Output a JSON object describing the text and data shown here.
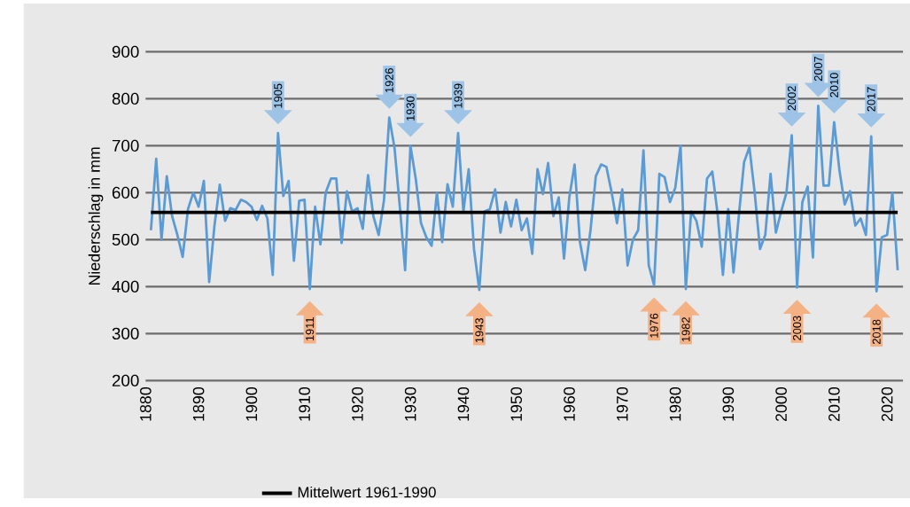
{
  "chart_data": {
    "type": "line",
    "ylabel": "Niederschlag in mm",
    "x": [
      1881,
      1882,
      1883,
      1884,
      1885,
      1886,
      1887,
      1888,
      1889,
      1890,
      1891,
      1892,
      1893,
      1894,
      1895,
      1896,
      1897,
      1898,
      1899,
      1900,
      1901,
      1902,
      1903,
      1904,
      1905,
      1906,
      1907,
      1908,
      1909,
      1910,
      1911,
      1912,
      1913,
      1914,
      1915,
      1916,
      1917,
      1918,
      1919,
      1920,
      1921,
      1922,
      1923,
      1924,
      1925,
      1926,
      1927,
      1928,
      1929,
      1930,
      1931,
      1932,
      1933,
      1934,
      1935,
      1936,
      1937,
      1938,
      1939,
      1940,
      1941,
      1942,
      1943,
      1944,
      1945,
      1946,
      1947,
      1948,
      1949,
      1950,
      1951,
      1952,
      1953,
      1954,
      1955,
      1956,
      1957,
      1958,
      1959,
      1960,
      1961,
      1962,
      1963,
      1964,
      1965,
      1966,
      1967,
      1968,
      1969,
      1970,
      1971,
      1972,
      1973,
      1974,
      1975,
      1976,
      1977,
      1978,
      1979,
      1980,
      1981,
      1982,
      1983,
      1984,
      1985,
      1986,
      1987,
      1988,
      1989,
      1990,
      1991,
      1992,
      1993,
      1994,
      1995,
      1996,
      1997,
      1998,
      1999,
      2000,
      2001,
      2002,
      2003,
      2004,
      2005,
      2006,
      2007,
      2008,
      2009,
      2010,
      2011,
      2012,
      2013,
      2014,
      2015,
      2016,
      2017,
      2018,
      2019,
      2020,
      2021,
      2022
    ],
    "series": [
      {
        "color": "#5b9bd5",
        "values": [
          520,
          672,
          500,
          635,
          550,
          510,
          463,
          565,
          600,
          570,
          625,
          410,
          530,
          617,
          540,
          567,
          563,
          585,
          580,
          570,
          542,
          572,
          545,
          425,
          727,
          593,
          625,
          455,
          583,
          585,
          395,
          570,
          490,
          600,
          630,
          630,
          493,
          603,
          560,
          567,
          523,
          637,
          550,
          510,
          583,
          760,
          695,
          570,
          435,
          700,
          630,
          535,
          505,
          487,
          600,
          495,
          618,
          570,
          727,
          560,
          650,
          480,
          393,
          560,
          565,
          607,
          515,
          580,
          528,
          585,
          520,
          545,
          470,
          650,
          597,
          663,
          550,
          590,
          460,
          590,
          660,
          495,
          435,
          520,
          635,
          660,
          655,
          600,
          535,
          607,
          445,
          500,
          520,
          690,
          445,
          403,
          640,
          633,
          580,
          610,
          700,
          395,
          560,
          540,
          485,
          630,
          645,
          555,
          425,
          565,
          430,
          550,
          665,
          697,
          600,
          480,
          510,
          640,
          515,
          560,
          600,
          722,
          398,
          580,
          613,
          462,
          785,
          615,
          615,
          750,
          648,
          575,
          603,
          530,
          545,
          510,
          720,
          390,
          505,
          510,
          600,
          435
        ]
      },
      {
        "name": "Mittelwert 1961-1990",
        "color": "#000000",
        "x": [
          1881,
          2022
        ],
        "values": [
          558,
          558
        ]
      }
    ],
    "xlim": [
      1880,
      2023
    ],
    "xticks": [
      1880,
      1890,
      1900,
      1910,
      1920,
      1930,
      1940,
      1950,
      1960,
      1970,
      1980,
      1990,
      2000,
      2010,
      2020
    ],
    "ylim": [
      200,
      900
    ],
    "yticks": [
      200,
      300,
      400,
      500,
      600,
      700,
      800,
      900
    ],
    "grid": "y",
    "legend": "bottom",
    "marker": "none",
    "annotations": [
      {
        "text": "1905",
        "x": 1905,
        "y": 727
      },
      {
        "text": "1911",
        "x": 1911,
        "y": 395
      },
      {
        "text": "1926",
        "x": 1926,
        "y": 760
      },
      {
        "text": "1930",
        "x": 1930,
        "y": 700
      },
      {
        "text": "1939",
        "x": 1939,
        "y": 727
      },
      {
        "text": "1943",
        "x": 1943,
        "y": 393
      },
      {
        "text": "1976",
        "x": 1976,
        "y": 403
      },
      {
        "text": "1982",
        "x": 1982,
        "y": 395
      },
      {
        "text": "2002",
        "x": 2002,
        "y": 722
      },
      {
        "text": "2003",
        "x": 2003,
        "y": 398
      },
      {
        "text": "2007",
        "x": 2007,
        "y": 785
      },
      {
        "text": "2010",
        "x": 2010,
        "y": 750
      },
      {
        "text": "2017",
        "x": 2017,
        "y": 720
      },
      {
        "text": "2018",
        "x": 2018,
        "y": 390
      }
    ]
  }
}
